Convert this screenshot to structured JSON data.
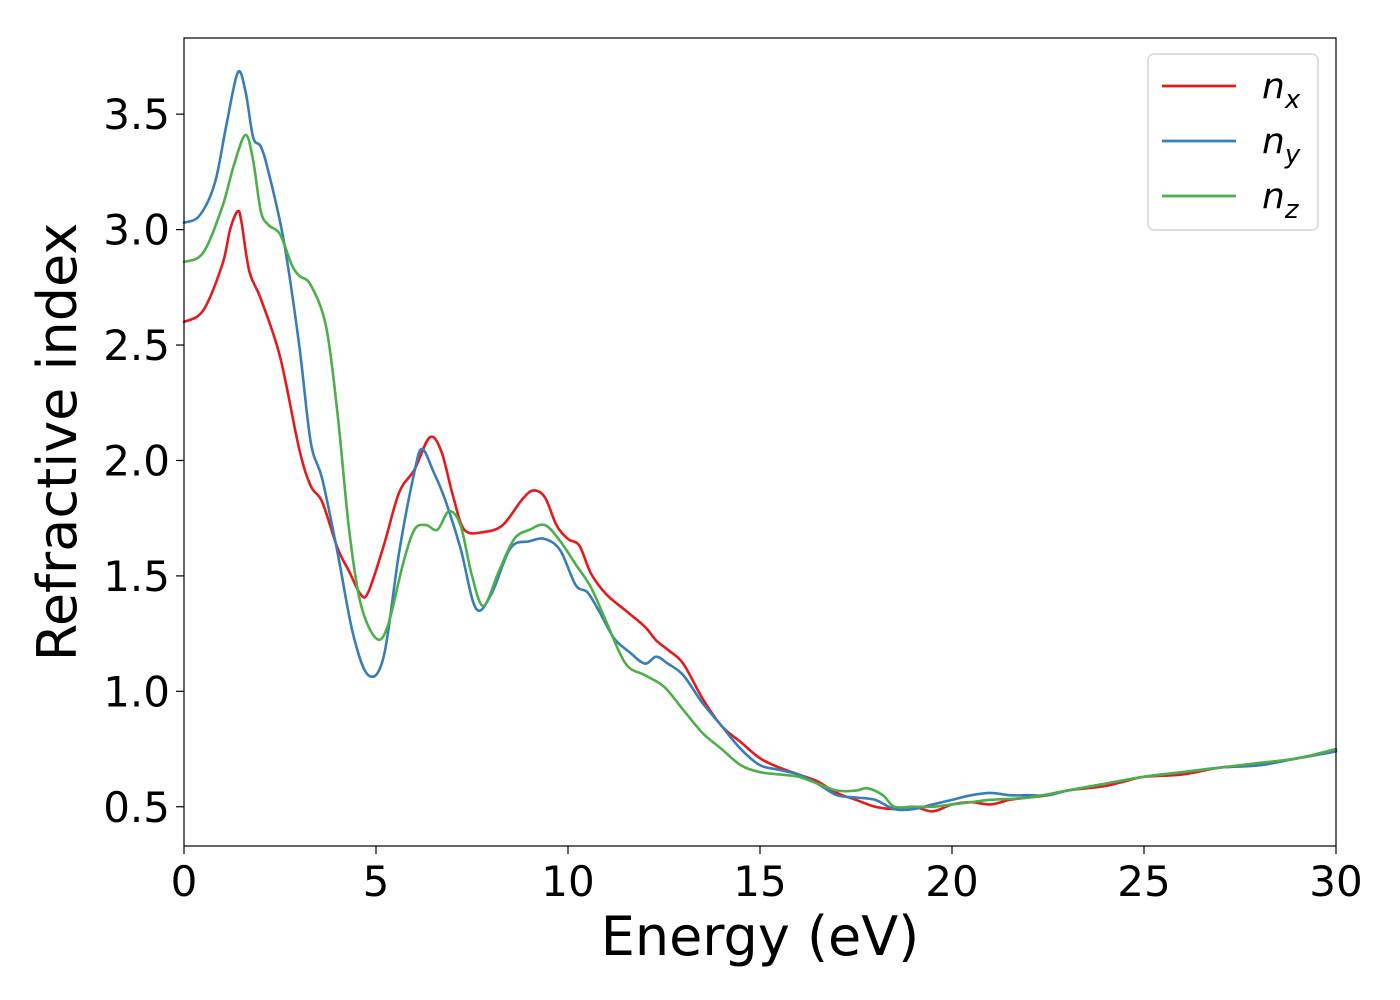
{
  "chart_data": {
    "type": "line",
    "title": "",
    "xlabel": "Energy (eV)",
    "ylabel": "Refractive index",
    "xlim": [
      0,
      30
    ],
    "ylim": [
      0.33,
      3.83
    ],
    "x_ticks": [
      0,
      5,
      10,
      15,
      20,
      25,
      30
    ],
    "x_tick_labels": [
      "0",
      "5",
      "10",
      "15",
      "20",
      "25",
      "30"
    ],
    "y_ticks": [
      0.5,
      1.0,
      1.5,
      2.0,
      2.5,
      3.0,
      3.5
    ],
    "y_tick_labels": [
      "0.5",
      "1.0",
      "1.5",
      "2.0",
      "2.5",
      "3.0",
      "3.5"
    ],
    "grid": false,
    "legend_position": "top-right",
    "series": [
      {
        "name": "n_x",
        "legend_base": "n",
        "legend_sub": "x",
        "color": "#e41a1c",
        "x": [
          0,
          0.5,
          1.0,
          1.2,
          1.4,
          1.5,
          1.7,
          2.0,
          2.5,
          3.0,
          3.3,
          3.6,
          4.0,
          4.3,
          4.6,
          4.8,
          5.2,
          5.6,
          6.0,
          6.4,
          6.7,
          7.0,
          7.3,
          7.8,
          8.3,
          8.8,
          9.1,
          9.4,
          9.7,
          10.0,
          10.3,
          10.6,
          11.0,
          11.5,
          12.0,
          12.3,
          12.6,
          13.0,
          13.5,
          14.0,
          14.5,
          15.0,
          15.5,
          16.0,
          16.5,
          17.0,
          17.5,
          18.0,
          18.5,
          19.0,
          19.5,
          20.0,
          20.5,
          21.0,
          21.5,
          22.0,
          22.5,
          23.0,
          23.5,
          24.0,
          24.5,
          25.0,
          26.0,
          27.0,
          28.0,
          29.0,
          30.0
        ],
        "y": [
          2.6,
          2.65,
          2.85,
          3.0,
          3.08,
          3.03,
          2.82,
          2.7,
          2.45,
          2.05,
          1.89,
          1.82,
          1.62,
          1.52,
          1.42,
          1.43,
          1.63,
          1.86,
          1.96,
          2.1,
          2.04,
          1.85,
          1.7,
          1.69,
          1.72,
          1.83,
          1.87,
          1.84,
          1.72,
          1.66,
          1.63,
          1.51,
          1.42,
          1.35,
          1.28,
          1.22,
          1.18,
          1.12,
          0.97,
          0.85,
          0.78,
          0.71,
          0.67,
          0.64,
          0.61,
          0.56,
          0.53,
          0.5,
          0.49,
          0.5,
          0.48,
          0.51,
          0.52,
          0.51,
          0.53,
          0.54,
          0.55,
          0.57,
          0.58,
          0.59,
          0.61,
          0.63,
          0.64,
          0.67,
          0.68,
          0.71,
          0.74
        ]
      },
      {
        "name": "n_y",
        "legend_base": "n",
        "legend_sub": "y",
        "color": "#377eb8",
        "x": [
          0,
          0.4,
          0.8,
          1.1,
          1.4,
          1.6,
          1.8,
          2.0,
          2.2,
          2.6,
          3.0,
          3.3,
          3.6,
          4.0,
          4.4,
          4.8,
          5.2,
          5.6,
          6.0,
          6.2,
          6.5,
          6.8,
          7.2,
          7.6,
          8.0,
          8.5,
          9.0,
          9.4,
          9.8,
          10.2,
          10.5,
          10.8,
          11.2,
          11.6,
          12.0,
          12.3,
          12.6,
          13.0,
          13.5,
          14.0,
          14.5,
          15.0,
          15.5,
          16.0,
          16.5,
          17.0,
          17.5,
          18.0,
          18.5,
          19.0,
          19.5,
          20.0,
          20.5,
          21.0,
          21.5,
          22.0,
          22.5,
          23.0,
          24.0,
          25.0,
          26.0,
          27.0,
          28.0,
          29.0,
          30.0
        ],
        "y": [
          3.03,
          3.06,
          3.2,
          3.45,
          3.68,
          3.6,
          3.4,
          3.36,
          3.25,
          2.95,
          2.5,
          2.08,
          1.92,
          1.6,
          1.25,
          1.07,
          1.15,
          1.6,
          1.95,
          2.05,
          1.95,
          1.83,
          1.62,
          1.36,
          1.42,
          1.62,
          1.65,
          1.66,
          1.61,
          1.46,
          1.43,
          1.35,
          1.23,
          1.17,
          1.12,
          1.15,
          1.12,
          1.07,
          0.95,
          0.85,
          0.75,
          0.68,
          0.66,
          0.64,
          0.6,
          0.55,
          0.54,
          0.53,
          0.49,
          0.49,
          0.51,
          0.53,
          0.55,
          0.56,
          0.55,
          0.55,
          0.55,
          0.57,
          0.6,
          0.63,
          0.65,
          0.67,
          0.68,
          0.71,
          0.74
        ]
      },
      {
        "name": "n_z",
        "legend_base": "n",
        "legend_sub": "z",
        "color": "#4daf4a",
        "x": [
          0,
          0.5,
          1.0,
          1.3,
          1.6,
          1.8,
          2.0,
          2.2,
          2.5,
          2.8,
          3.0,
          3.3,
          3.7,
          4.0,
          4.3,
          4.6,
          5.0,
          5.3,
          5.7,
          6.0,
          6.3,
          6.6,
          6.9,
          7.2,
          7.5,
          7.8,
          8.2,
          8.6,
          9.0,
          9.4,
          9.8,
          10.2,
          10.6,
          11.0,
          11.5,
          12.0,
          12.5,
          13.0,
          13.5,
          14.0,
          14.5,
          15.0,
          15.5,
          16.0,
          16.5,
          17.0,
          17.5,
          17.8,
          18.2,
          18.5,
          19.0,
          19.5,
          20.0,
          20.5,
          21.0,
          22.0,
          23.0,
          24.0,
          25.0,
          26.0,
          27.0,
          28.0,
          29.0,
          30.0
        ],
        "y": [
          2.86,
          2.9,
          3.1,
          3.28,
          3.41,
          3.3,
          3.08,
          3.02,
          2.98,
          2.85,
          2.8,
          2.76,
          2.58,
          2.2,
          1.7,
          1.38,
          1.23,
          1.28,
          1.55,
          1.7,
          1.72,
          1.7,
          1.78,
          1.72,
          1.5,
          1.37,
          1.52,
          1.66,
          1.7,
          1.72,
          1.65,
          1.55,
          1.45,
          1.3,
          1.12,
          1.07,
          1.02,
          0.92,
          0.82,
          0.75,
          0.68,
          0.65,
          0.64,
          0.63,
          0.6,
          0.57,
          0.57,
          0.58,
          0.55,
          0.5,
          0.5,
          0.5,
          0.51,
          0.52,
          0.53,
          0.54,
          0.57,
          0.6,
          0.63,
          0.65,
          0.67,
          0.69,
          0.71,
          0.75
        ]
      }
    ]
  }
}
